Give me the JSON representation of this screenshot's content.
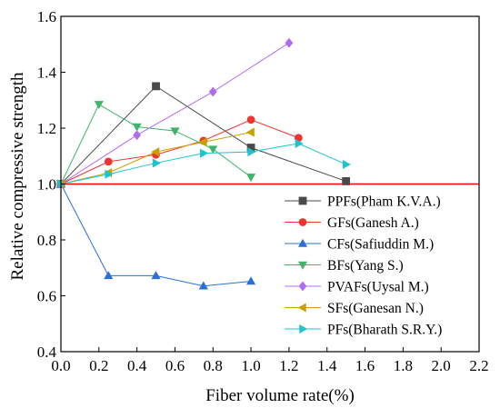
{
  "chart_data": {
    "type": "line",
    "title": "",
    "xlabel": "Fiber volume rate(%)",
    "ylabel": "Relative compressive strength",
    "xlim": [
      0.0,
      2.2
    ],
    "ylim": [
      0.4,
      1.6
    ],
    "x_ticks": [
      "0.0",
      "0.2",
      "0.4",
      "0.6",
      "0.8",
      "1.0",
      "1.2",
      "1.4",
      "1.6",
      "1.8",
      "2.0",
      "2.2"
    ],
    "y_ticks": [
      "0.4",
      "0.6",
      "0.8",
      "1.0",
      "1.2",
      "1.4",
      "1.6"
    ],
    "grid": false,
    "legend_position": "lower-right",
    "reference_line": {
      "y": 1.0,
      "color": "#ff0000"
    },
    "series": [
      {
        "name": "PPFs(Pham K.V.A.)",
        "color": "#4a4a4a",
        "marker": "square",
        "x": [
          0,
          0.5,
          1.0,
          1.5
        ],
        "y": [
          1.0,
          1.35,
          1.13,
          1.01
        ]
      },
      {
        "name": "GFs(Ganesh A.)",
        "color": "#ee3333",
        "marker": "circle",
        "x": [
          0,
          0.25,
          0.5,
          0.75,
          1.0,
          1.25
        ],
        "y": [
          1.0,
          1.08,
          1.105,
          1.155,
          1.23,
          1.165
        ]
      },
      {
        "name": "CFs(Safiuddin M.)",
        "color": "#2a6fd6",
        "marker": "triangle-up",
        "x": [
          0,
          0.25,
          0.5,
          0.75,
          1.0
        ],
        "y": [
          1.0,
          0.672,
          0.672,
          0.635,
          0.652
        ]
      },
      {
        "name": "BFs(Yang S.)",
        "color": "#3fb56a",
        "marker": "triangle-down",
        "x": [
          0,
          0.2,
          0.4,
          0.6,
          0.8,
          1.0
        ],
        "y": [
          1.0,
          1.285,
          1.205,
          1.19,
          1.125,
          1.025
        ]
      },
      {
        "name": "PVAFs(Uysal M.)",
        "color": "#b06cf0",
        "marker": "diamond",
        "x": [
          0,
          0.4,
          0.8,
          1.2
        ],
        "y": [
          1.0,
          1.175,
          1.33,
          1.505
        ]
      },
      {
        "name": "SFs(Ganesan N.)",
        "color": "#c9a000",
        "marker": "triangle-left",
        "x": [
          0,
          0.25,
          0.5,
          0.75,
          1.0
        ],
        "y": [
          1.0,
          1.04,
          1.115,
          1.15,
          1.185
        ]
      },
      {
        "name": "PFs(Bharath S.R.Y.)",
        "color": "#1dc4cc",
        "marker": "triangle-right",
        "x": [
          0,
          0.25,
          0.5,
          0.75,
          1.0,
          1.25,
          1.5
        ],
        "y": [
          1.0,
          1.035,
          1.075,
          1.11,
          1.115,
          1.145,
          1.07
        ]
      }
    ]
  }
}
